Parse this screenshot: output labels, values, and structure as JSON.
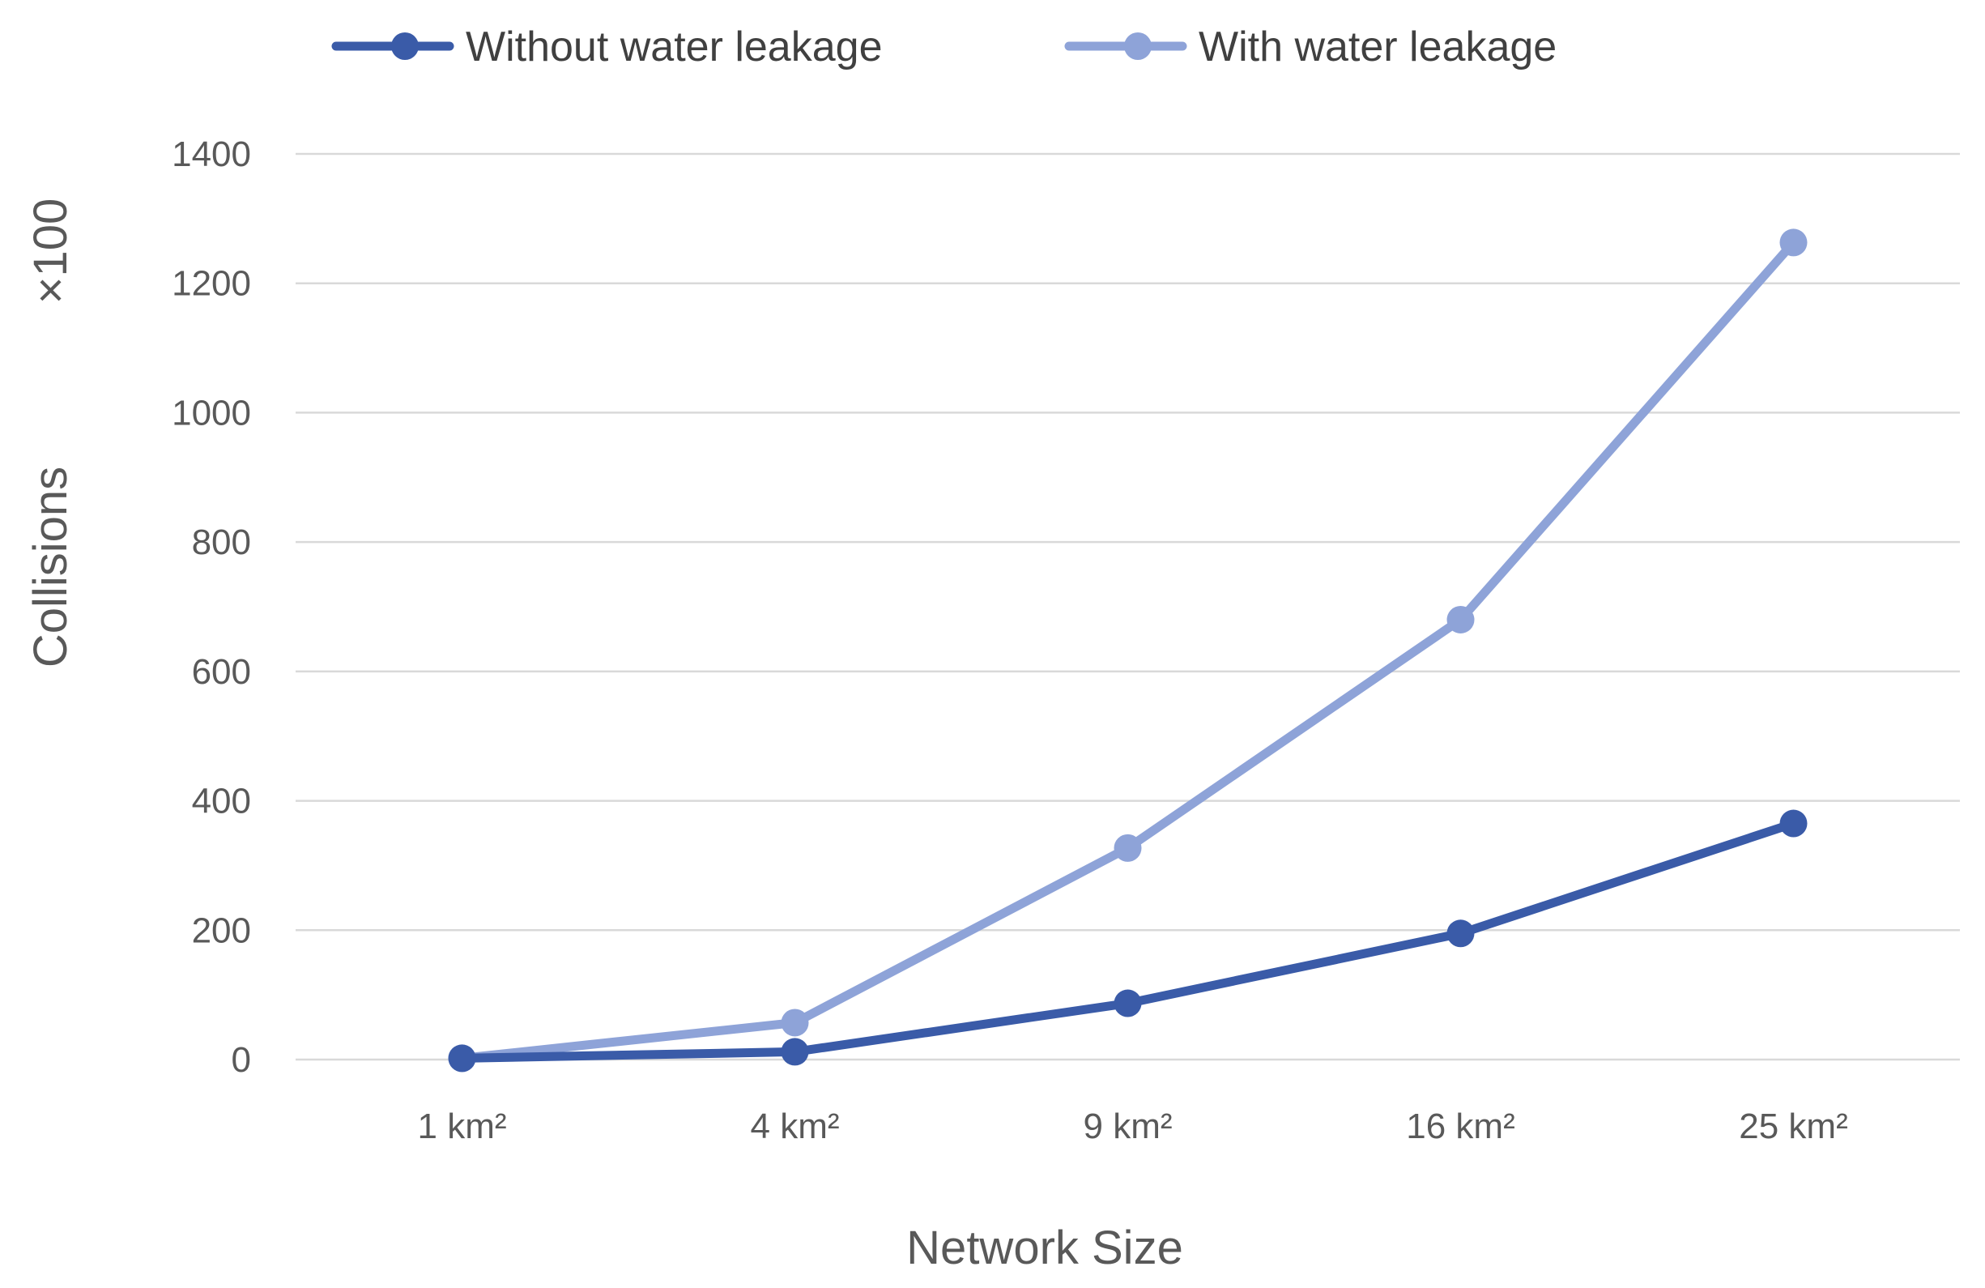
{
  "chart_data": {
    "type": "line",
    "categories": [
      "1 km²",
      "4 km²",
      "9 km²",
      "16 km²",
      "25 km²"
    ],
    "series": [
      {
        "name": "Without water leakage",
        "values": [
          2,
          12,
          87,
          195,
          365
        ],
        "color": "#3a5ba8"
      },
      {
        "name": "With water leakage",
        "values": [
          2,
          57,
          327,
          680,
          1263
        ],
        "color": "#8ea3d8"
      }
    ],
    "xlabel": "Network Size",
    "ylabel": "Collisions",
    "ylabel_multiplier": "×100",
    "ylim": [
      0,
      1400
    ],
    "yticks": [
      0,
      200,
      400,
      600,
      800,
      1000,
      1200,
      1400
    ],
    "grid": true,
    "legend_position": "top",
    "gridline_color": "#d9d9d9"
  }
}
